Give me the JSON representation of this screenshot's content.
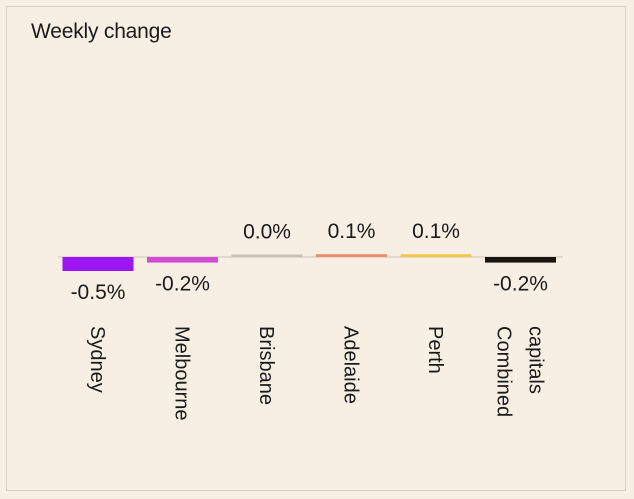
{
  "chart_data": {
    "type": "bar",
    "title": "Weekly change",
    "categories": [
      [
        "Sydney"
      ],
      [
        "Melbourne"
      ],
      [
        "Brisbane"
      ],
      [
        "Adelaide"
      ],
      [
        "Perth"
      ],
      [
        "Combined",
        "capitals"
      ]
    ],
    "values": [
      -0.5,
      -0.2,
      0.0,
      0.1,
      0.1,
      -0.2
    ],
    "value_labels": [
      "-0.5%",
      "-0.2%",
      "0.0%",
      "0.1%",
      "0.1%",
      "-0.2%"
    ],
    "colors": [
      "#9b16f2",
      "#d44bd8",
      "#c9c0b3",
      "#f08a6e",
      "#f5c84a",
      "#1a1410"
    ],
    "xlabel": "",
    "ylabel": "",
    "grid": false,
    "legend": "none"
  }
}
